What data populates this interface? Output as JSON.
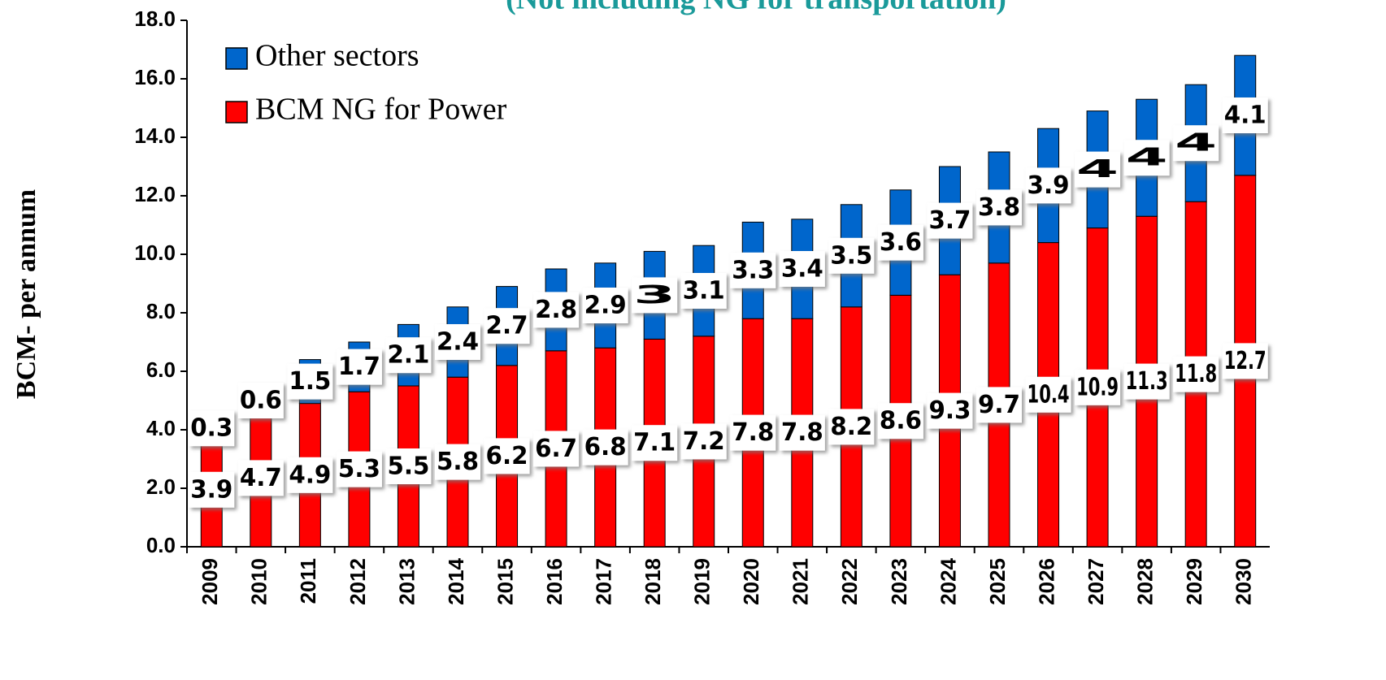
{
  "chart_data": {
    "type": "stacked_bar",
    "title": "(Not including NG for transportation)",
    "y_label": "BCM- per annum",
    "categories": [
      "2009",
      "2010",
      "2011",
      "2012",
      "2013",
      "2014",
      "2015",
      "2016",
      "2017",
      "2018",
      "2019",
      "2020",
      "2021",
      "2022",
      "2023",
      "2024",
      "2025",
      "2026",
      "2027",
      "2028",
      "2029",
      "2030"
    ],
    "series": [
      {
        "name": "BCM NG for Power",
        "color": "#ff0000",
        "values": [
          3.9,
          4.7,
          4.9,
          5.3,
          5.5,
          5.8,
          6.2,
          6.7,
          6.8,
          7.1,
          7.2,
          7.8,
          7.8,
          8.2,
          8.6,
          9.3,
          9.7,
          10.4,
          10.9,
          11.3,
          11.8,
          12.7
        ]
      },
      {
        "name": "Other sectors",
        "color": "#0066cc",
        "values": [
          0.3,
          0.6,
          1.5,
          1.7,
          2.1,
          2.4,
          2.7,
          2.8,
          2.9,
          3.0,
          3.1,
          3.3,
          3.4,
          3.5,
          3.6,
          3.7,
          3.8,
          3.9,
          4.0,
          4.0,
          4.0,
          4.1
        ]
      }
    ],
    "ylim": [
      0,
      18
    ],
    "yticks": [
      {
        "value": 0,
        "label": "0.0"
      },
      {
        "value": 2,
        "label": "2.0"
      },
      {
        "value": 4,
        "label": "4.0"
      },
      {
        "value": 6,
        "label": "6.0"
      },
      {
        "value": 8,
        "label": "8.0"
      },
      {
        "value": 10,
        "label": "10.0"
      },
      {
        "value": 12,
        "label": "12.0"
      },
      {
        "value": 14,
        "label": "14.0"
      },
      {
        "value": 16,
        "label": "16.0"
      },
      {
        "value": 18,
        "label": "18.0"
      }
    ],
    "legend": "upper left"
  }
}
